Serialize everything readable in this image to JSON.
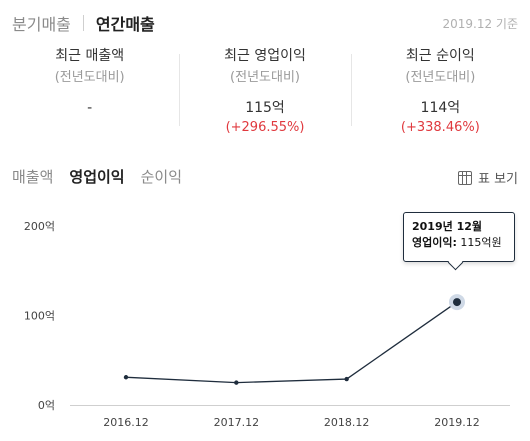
{
  "tabs": {
    "quarterly": "분기매출",
    "annual": "연간매출"
  },
  "basis": "2019.12 기준",
  "summary": [
    {
      "title": "최근 매출액",
      "sub": "(전년도대비)",
      "value": "-",
      "change": ""
    },
    {
      "title": "최근 영업이익",
      "sub": "(전년도대비)",
      "value": "115억",
      "change": "(+296.55%)"
    },
    {
      "title": "최근 순이익",
      "sub": "(전년도대비)",
      "value": "114억",
      "change": "(+338.46%)"
    }
  ],
  "metric_tabs": [
    "매출액",
    "영업이익",
    "순이익"
  ],
  "table_view_label": "표 보기",
  "tooltip": {
    "title": "2019년 12월",
    "label": "영업이익:",
    "value": "115억원"
  },
  "colors": {
    "line": "#1f2d3d",
    "increase": "#e0393e",
    "highlight": "#cfd9e6"
  },
  "chart_data": {
    "type": "line",
    "categories": [
      "2016.12",
      "2017.12",
      "2018.12",
      "2019.12"
    ],
    "series": [
      {
        "values": [
          31,
          25,
          29,
          115
        ]
      }
    ],
    "y_tick_values": [
      0,
      100,
      200
    ],
    "y_tick_labels": [
      "0억",
      "100억",
      "200억"
    ],
    "ylim": [
      0,
      200
    ],
    "highlighted_index": 3,
    "grid": false
  }
}
